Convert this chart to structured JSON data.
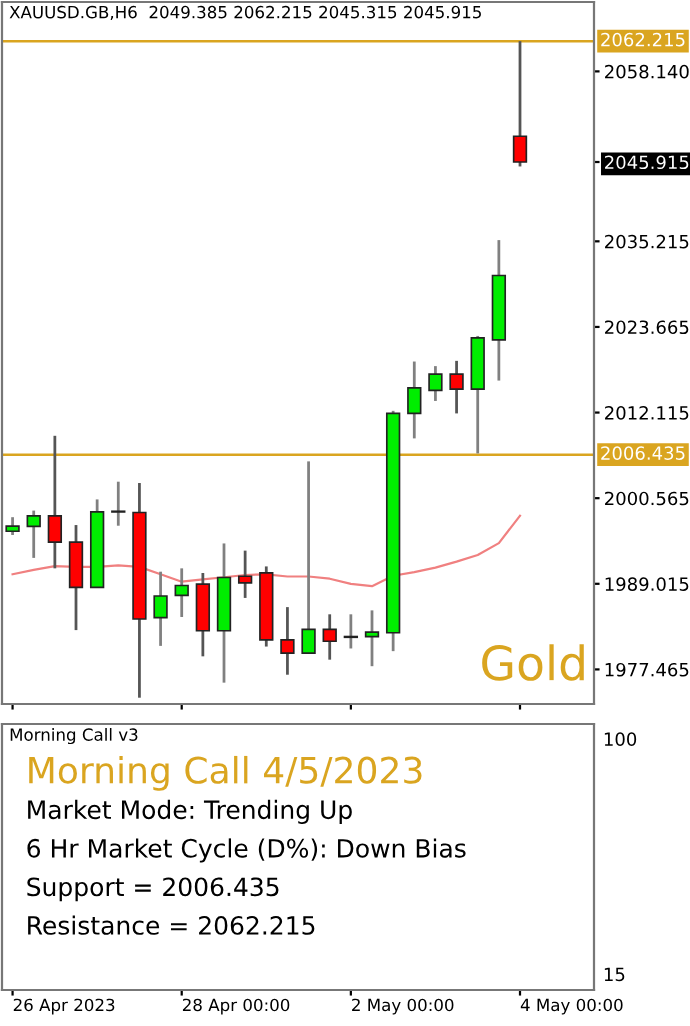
{
  "chart_data": [
    {
      "type": "candlestick",
      "title": "XAUUSD.GB,H6  2049.385 2062.215 2045.315 2045.915",
      "categories": [
        null,
        null,
        null,
        null,
        null,
        null,
        null,
        null,
        null,
        null,
        null,
        null,
        null,
        null,
        null,
        null,
        null,
        null,
        null,
        null,
        null,
        null,
        null,
        null,
        null,
        null,
        null,
        null
      ],
      "ohlc": [
        [
          1996.1,
          1998.0,
          1995.6,
          1996.8
        ],
        [
          1996.77,
          1998.89,
          1992.51,
          1998.18
        ],
        [
          1998.18,
          2008.98,
          1991.1,
          1994.64
        ],
        [
          1994.64,
          1996.94,
          1982.77,
          1988.53
        ],
        [
          1988.53,
          2000.4,
          1988.53,
          1998.71
        ],
        [
          1998.71,
          2002.79,
          1996.85,
          1998.8
        ],
        [
          1998.63,
          2002.61,
          1973.65,
          1984.27
        ],
        [
          1984.45,
          1990.65,
          1980.64,
          1987.37
        ],
        [
          1987.46,
          1991.1,
          1984.54,
          1988.79
        ],
        [
          1988.97,
          1990.47,
          1979.23,
          1982.68
        ],
        [
          1982.68,
          1994.46,
          1975.68,
          1989.86
        ],
        [
          1990.03,
          1993.49,
          1987.11,
          1989.15
        ],
        [
          1990.48,
          1991.36,
          1980.55,
          1981.44
        ],
        [
          1981.44,
          1985.87,
          1976.75,
          1979.67
        ],
        [
          1979.67,
          2005.53,
          1979.58,
          1982.86
        ],
        [
          1982.86,
          1984.9,
          1978.78,
          1981.26
        ],
        [
          1981.8,
          1984.9,
          1980.29,
          1981.9
        ],
        [
          1981.88,
          1985.43,
          1977.9,
          1982.5
        ],
        [
          1982.41,
          2012.35,
          1979.93,
          2012.0
        ],
        [
          2012.0,
          2019.0,
          2008.63,
          2015.45
        ],
        [
          2015.1,
          2018.38,
          2013.68,
          2017.31
        ],
        [
          2017.31,
          2019.09,
          2012.0,
          2015.28
        ],
        [
          2015.28,
          2022.45,
          2006.6,
          2022.19
        ],
        [
          2021.92,
          2035.38,
          2016.43,
          2030.6
        ],
        [
          2049.385,
          2062.215,
          2045.315,
          2045.915
        ],
        null,
        null,
        null
      ],
      "series": [
        {
          "type": "line",
          "color": "#f08080",
          "values": [
            1990.3,
            1990.9,
            1991.4,
            1991.3,
            1991.3,
            1991.5,
            1991.3,
            1990.3,
            1989.3,
            1989.6,
            1989.9,
            1990.2,
            1990.3,
            1990.0,
            1990.0,
            1989.7,
            1989.0,
            1988.7,
            1990.1,
            1990.6,
            1991.2,
            1992.0,
            1992.9,
            1994.5,
            1998.2,
            null,
            null,
            null
          ]
        }
      ],
      "ylim": [
        1972.8,
        2067.5
      ],
      "yticks": [
        {
          "value": 2058.14,
          "label": "2058.140"
        },
        {
          "value": 2045.915,
          "label": "2045.915"
        },
        2035.215,
        2023.665,
        2012.115,
        2000.565,
        1989.015,
        1977.465
      ],
      "ref_lines": [
        {
          "axis": "y",
          "value": 2062.215,
          "label": "2062.215",
          "color": "#daa520"
        },
        {
          "axis": "y",
          "value": 2006.435,
          "label": "2006.435",
          "color": "#daa520"
        }
      ],
      "annotations": [
        "Gold"
      ],
      "tick_labels": "y"
    },
    {
      "type": "other",
      "title": "Morning Call v3",
      "subtitle": "Morning Call 4/5/2023",
      "categories": [
        "26 Apr 2023",
        null,
        null,
        null,
        null,
        null,
        null,
        null,
        "28 Apr 00:00",
        null,
        null,
        null,
        null,
        null,
        null,
        null,
        "2 May 00:00",
        null,
        null,
        null,
        null,
        null,
        null,
        null,
        "4 May 00:00",
        null,
        null,
        null
      ],
      "annotations": [
        "Market Mode: Trending Up",
        "6 Hr Market Cycle (D%): Down Bias",
        "Support = 2006.435",
        "Resistance = 2062.215",
        "100",
        "15"
      ]
    }
  ]
}
